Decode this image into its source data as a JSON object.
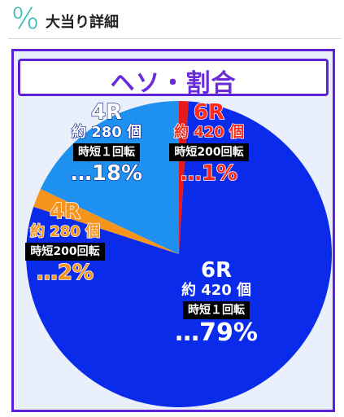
{
  "header": {
    "icon": "percent-icon",
    "title": "大当り詳細"
  },
  "panel": {
    "title": "ヘソ・割合"
  },
  "chart_data": {
    "type": "pie",
    "title": "ヘソ・割合",
    "values": [
      {
        "label": "6R",
        "amount": "約 420 個",
        "tag": "時短200回転",
        "percent": "…1%",
        "value": 1,
        "color": "#e81919"
      },
      {
        "label": "6R",
        "amount": "約 420 個",
        "tag": "時短１回転",
        "percent": "…79%",
        "value": 79,
        "color": "#0b2bea"
      },
      {
        "label": "4R",
        "amount": "約 280 個",
        "tag": "時短200回転",
        "percent": "…2%",
        "value": 2,
        "color": "#f7941d"
      },
      {
        "label": "4R",
        "amount": "約 280 個",
        "tag": "時短１回転",
        "percent": "…18%",
        "value": 18,
        "color": "#1e90f0"
      }
    ]
  },
  "labels": {
    "red6": {
      "r": "6R",
      "amt": "約 420 個",
      "tag": "時短200回転",
      "pct": "…1%"
    },
    "blue6": {
      "r": "6R",
      "amt": "約 420 個",
      "tag": "時短１回転",
      "pct": "…79%"
    },
    "orange4": {
      "r": "4R",
      "amt": "約 280 個",
      "tag": "時短200回転",
      "pct": "…2%"
    },
    "lblue4": {
      "r": "4R",
      "amt": "約 280 個",
      "tag": "時短１回転",
      "pct": "…18%"
    }
  }
}
